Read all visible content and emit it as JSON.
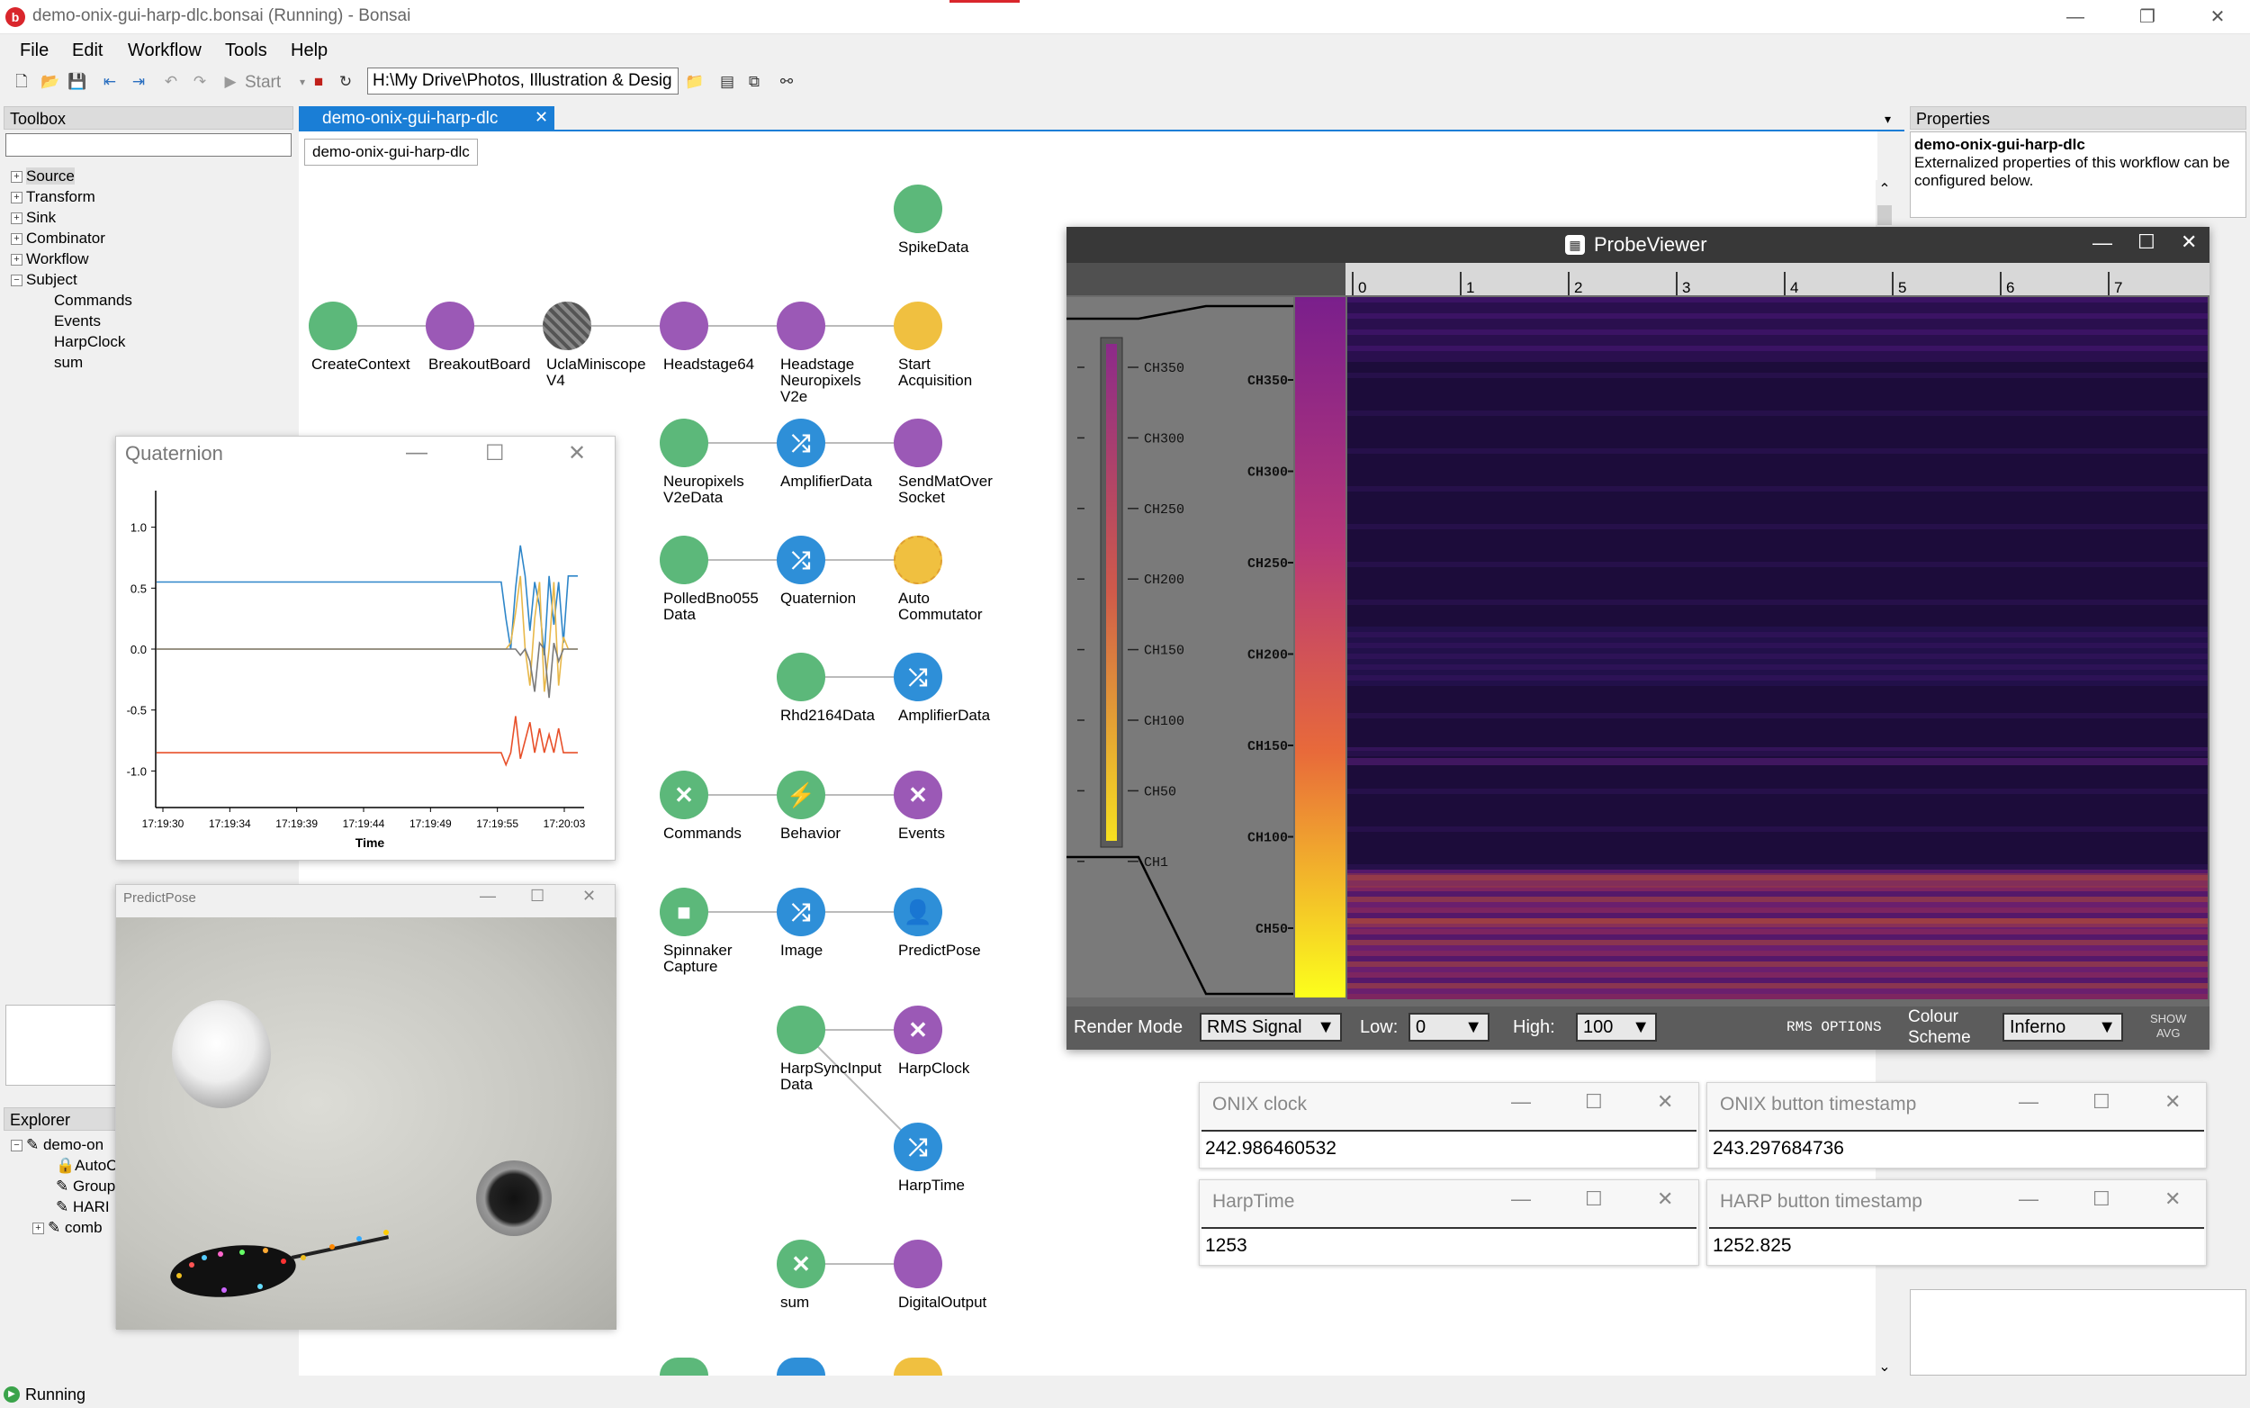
{
  "window": {
    "title": "demo-onix-gui-harp-dlc.bonsai (Running) - Bonsai"
  },
  "menu": [
    "File",
    "Edit",
    "Workflow",
    "Tools",
    "Help"
  ],
  "toolbar": {
    "start_label": "Start",
    "path": "H:\\My Drive\\Photos, Illustration & Desig"
  },
  "toolbox": {
    "header": "Toolbox",
    "search_placeholder": "",
    "categories": [
      "Source",
      "Transform",
      "Sink",
      "Combinator",
      "Workflow",
      "Subject"
    ],
    "subject_items": [
      "Commands",
      "Events",
      "HarpClock",
      "sum"
    ]
  },
  "explorer": {
    "header": "Explorer",
    "items": [
      "demo-on",
      "AutoC",
      "Group",
      "HARI",
      "comb"
    ]
  },
  "editor": {
    "tab": "demo-onix-gui-harp-dlc",
    "breadcrumb": "demo-onix-gui-harp-dlc"
  },
  "nodes": {
    "spikedata": "SpikeData",
    "createcontext": "CreateContext",
    "breakoutboard": "BreakoutBoard",
    "uclaminiscope": "UclaMiniscope\nV4",
    "headstage64": "Headstage64",
    "headstageneuropixels": "Headstage\nNeuropixels\nV2e",
    "startacquisition": "Start\nAcquisition",
    "neuropixelsv2edata": "Neuropixels\nV2eData",
    "amplifierdata1": "AmplifierData",
    "sendmatoversocket": "SendMatOver\nSocket",
    "polledbno055data": "PolledBno055\nData",
    "quaternion": "Quaternion",
    "autocommutator": "Auto\nCommutator",
    "rhd2164data": "Rhd2164Data",
    "amplifierdata2": "AmplifierData",
    "commands": "Commands",
    "behavior": "Behavior",
    "events": "Events",
    "spinnakercapture": "Spinnaker\nCapture",
    "image": "Image",
    "predictpose": "PredictPose",
    "harpsyncinputdata": "HarpSyncInput\nData",
    "harpclock": "HarpClock",
    "harptime": "HarpTime",
    "sum": "sum",
    "digitaloutput": "DigitalOutput"
  },
  "properties": {
    "header": "Properties",
    "name": "demo-onix-gui-harp-dlc",
    "description": "Externalized properties of this workflow can be configured below."
  },
  "quaternion_window": {
    "title": "Quaternion"
  },
  "predictpose_window": {
    "title": "PredictPose"
  },
  "chart_data": {
    "type": "line",
    "title": "",
    "xlabel": "Time",
    "ylabel": "",
    "ylim": [
      -1.3,
      1.3
    ],
    "yticks": [
      "1.0",
      "0.5",
      "0.0",
      "-0.5",
      "-1.0"
    ],
    "xticks": [
      "17:19:30",
      "17:19:34",
      "17:19:39",
      "17:19:44",
      "17:19:49",
      "17:19:55",
      "17:20:03"
    ],
    "grid": false,
    "series": [
      {
        "color": "#2e86c9",
        "values": [
          0.55,
          0.55,
          0.55,
          0.55,
          0.55,
          0.55,
          0.55,
          0.55,
          0.55,
          0.55,
          0.55,
          0.55,
          0.55,
          0.55,
          0.55,
          0.55,
          0.55,
          0.55,
          0.55,
          0.55,
          0.55,
          0.55,
          0.55,
          0.55,
          0.55,
          0.55,
          0.55,
          0.55,
          0.55,
          0.55,
          0.55,
          0.55,
          0.55,
          0.55,
          0.55,
          0.55,
          0.55,
          0.55,
          0.55,
          0.55,
          0.55,
          0.55,
          0.55,
          0.55,
          0.55,
          0.55,
          0.55,
          0.55,
          0.55,
          0.55,
          0.55,
          0.55,
          0.55,
          0.55,
          0.55,
          0.55,
          0.55,
          0.55,
          0.55,
          0.55,
          0.55,
          0.55,
          0.55,
          0.55,
          0.55,
          0.55,
          0.55,
          0.55,
          0.55,
          0.55,
          0.55,
          0.55,
          0.55,
          0.25,
          0.0,
          0.5,
          0.85,
          0.6,
          0.15,
          0.55,
          0.35,
          -0.05,
          0.6,
          0.2,
          0.55,
          0.05,
          0.6,
          0.6,
          0.6
        ]
      },
      {
        "color": "#e8b84a",
        "values": [
          0.0,
          0.0,
          0.0,
          0.0,
          0.0,
          0.0,
          0.0,
          0.0,
          0.0,
          0.0,
          0.0,
          0.0,
          0.0,
          0.0,
          0.0,
          0.0,
          0.0,
          0.0,
          0.0,
          0.0,
          0.0,
          0.0,
          0.0,
          0.0,
          0.0,
          0.0,
          0.0,
          0.0,
          0.0,
          0.0,
          0.0,
          0.0,
          0.0,
          0.0,
          0.0,
          0.0,
          0.0,
          0.0,
          0.0,
          0.0,
          0.0,
          0.0,
          0.0,
          0.0,
          0.0,
          0.0,
          0.0,
          0.0,
          0.0,
          0.0,
          0.0,
          0.0,
          0.0,
          0.0,
          0.0,
          0.0,
          0.0,
          0.0,
          0.0,
          0.0,
          0.0,
          0.0,
          0.0,
          0.0,
          0.0,
          0.0,
          0.0,
          0.0,
          0.0,
          0.0,
          0.0,
          0.0,
          0.0,
          0.0,
          0.05,
          0.3,
          0.6,
          0.0,
          -0.3,
          0.25,
          0.55,
          -0.35,
          0.0,
          0.55,
          -0.3,
          0.1,
          0.0,
          0.0,
          0.0
        ]
      },
      {
        "color": "#7a7a7a",
        "values": [
          0.0,
          0.0,
          0.0,
          0.0,
          0.0,
          0.0,
          0.0,
          0.0,
          0.0,
          0.0,
          0.0,
          0.0,
          0.0,
          0.0,
          0.0,
          0.0,
          0.0,
          0.0,
          0.0,
          0.0,
          0.0,
          0.0,
          0.0,
          0.0,
          0.0,
          0.0,
          0.0,
          0.0,
          0.0,
          0.0,
          0.0,
          0.0,
          0.0,
          0.0,
          0.0,
          0.0,
          0.0,
          0.0,
          0.0,
          0.0,
          0.0,
          0.0,
          0.0,
          0.0,
          0.0,
          0.0,
          0.0,
          0.0,
          0.0,
          0.0,
          0.0,
          0.0,
          0.0,
          0.0,
          0.0,
          0.0,
          0.0,
          0.0,
          0.0,
          0.0,
          0.0,
          0.0,
          0.0,
          0.0,
          0.0,
          0.0,
          0.0,
          0.0,
          0.0,
          0.0,
          0.0,
          0.0,
          0.0,
          0.0,
          0.0,
          0.0,
          -0.05,
          0.0,
          -0.1,
          -0.35,
          0.05,
          0.0,
          -0.4,
          0.05,
          -0.1,
          0.0,
          0.0,
          0.0,
          0.0
        ]
      },
      {
        "color": "#e8502a",
        "values": [
          -0.85,
          -0.85,
          -0.85,
          -0.85,
          -0.85,
          -0.85,
          -0.85,
          -0.85,
          -0.85,
          -0.85,
          -0.85,
          -0.85,
          -0.85,
          -0.85,
          -0.85,
          -0.85,
          -0.85,
          -0.85,
          -0.85,
          -0.85,
          -0.85,
          -0.85,
          -0.85,
          -0.85,
          -0.85,
          -0.85,
          -0.85,
          -0.85,
          -0.85,
          -0.85,
          -0.85,
          -0.85,
          -0.85,
          -0.85,
          -0.85,
          -0.85,
          -0.85,
          -0.85,
          -0.85,
          -0.85,
          -0.85,
          -0.85,
          -0.85,
          -0.85,
          -0.85,
          -0.85,
          -0.85,
          -0.85,
          -0.85,
          -0.85,
          -0.85,
          -0.85,
          -0.85,
          -0.85,
          -0.85,
          -0.85,
          -0.85,
          -0.85,
          -0.85,
          -0.85,
          -0.85,
          -0.85,
          -0.85,
          -0.85,
          -0.85,
          -0.85,
          -0.85,
          -0.85,
          -0.85,
          -0.85,
          -0.85,
          -0.85,
          -0.85,
          -0.95,
          -0.85,
          -0.55,
          -0.9,
          -0.75,
          -0.6,
          -0.85,
          -0.65,
          -0.85,
          -0.7,
          -0.85,
          -0.65,
          -0.85,
          -0.85,
          -0.85,
          -0.85
        ]
      }
    ]
  },
  "probeviewer": {
    "title": "ProbeViewer",
    "time_ticks": [
      "0",
      "1",
      "2",
      "3",
      "4",
      "5",
      "6",
      "7"
    ],
    "probe_ticks": [
      "CH350",
      "CH300",
      "CH250",
      "CH200",
      "CH150",
      "CH100",
      "CH50",
      "CH1"
    ],
    "heat_ticks": [
      "CH350",
      "CH300",
      "CH250",
      "CH200",
      "CH150",
      "CH100",
      "CH50"
    ],
    "render_mode_label": "Render Mode",
    "render_mode_value": "RMS Signal",
    "low_label": "Low:",
    "low_value": "0",
    "high_label": "High:",
    "high_value": "100",
    "rms_options": "RMS OPTIONS",
    "colour_scheme_label": "Colour\nScheme",
    "colour_scheme_value": "Inferno",
    "show_avg": "SHOW\nAVG"
  },
  "readouts": {
    "onix_clock": {
      "title": "ONIX clock",
      "value": "242.986460532"
    },
    "onix_button": {
      "title": "ONIX button timestamp",
      "value": "243.297684736"
    },
    "harptime": {
      "title": "HarpTime",
      "value": "1253"
    },
    "harp_button": {
      "title": "HARP button timestamp",
      "value": "1252.825"
    }
  },
  "status": {
    "text": "Running"
  },
  "colors": {
    "green": "#5cb87a",
    "purple": "#9b59b6",
    "blue": "#2e8fd8",
    "orange": "#f0c040",
    "accent": "#1a7ed6"
  }
}
